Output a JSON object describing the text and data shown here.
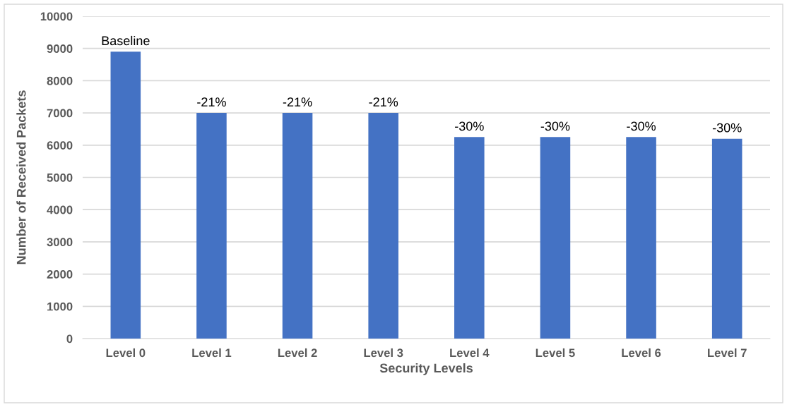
{
  "chart_data": {
    "type": "bar",
    "xlabel": "Security Levels",
    "ylabel": "Number of Received Packets",
    "categories": [
      "Level 0",
      "Level 1",
      "Level 2",
      "Level 3",
      "Level 4",
      "Level 5",
      "Level 6",
      "Level 7"
    ],
    "values": [
      8900,
      7000,
      7000,
      7000,
      6250,
      6250,
      6250,
      6200
    ],
    "annotations": [
      {
        "text": "Baseline",
        "x": "Level 0",
        "y": 8900
      },
      {
        "text": "-21%",
        "x": "Level 1",
        "y": 7000
      },
      {
        "text": "-21%",
        "x": "Level 2",
        "y": 7000
      },
      {
        "text": "-21%",
        "x": "Level 3",
        "y": 7000
      },
      {
        "text": "-30%",
        "x": "Level 4",
        "y": 6250
      },
      {
        "text": "-30%",
        "x": "Level 5",
        "y": 6250
      },
      {
        "text": "-30%",
        "x": "Level 6",
        "y": 6250
      },
      {
        "text": "-30%",
        "x": "Level 7",
        "y": 6200
      }
    ],
    "color": "#4472c4",
    "ylim": [
      0,
      10000
    ],
    "yticks": [
      0,
      1000,
      2000,
      3000,
      4000,
      5000,
      6000,
      7000,
      8000,
      9000,
      10000
    ],
    "grid": "y"
  }
}
